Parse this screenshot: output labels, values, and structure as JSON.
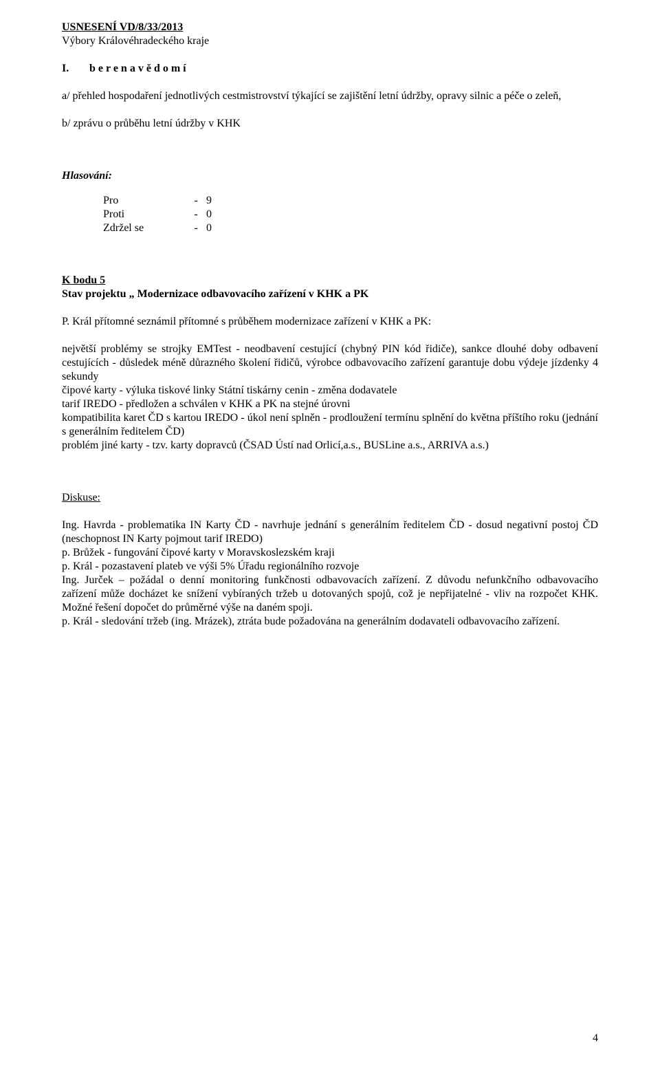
{
  "resolution": {
    "heading": "USNESENÍ VD/8/33/2013",
    "subheading": "Výbory Královéhradeckého kraje",
    "roman": "I.",
    "takes_note": "b e r e   n a   v ě d o m í",
    "line_a": "a/ přehled hospodaření jednotlivých cestmistrovství týkající se zajištění letní údržby, opravy silnic a péče o zeleň,",
    "line_b": "b/ zprávu o průběhu letní údržby v KHK"
  },
  "voting": {
    "title": "Hlasování:",
    "rows": [
      {
        "label": "Pro",
        "dash": "-",
        "value": "9"
      },
      {
        "label": "Proti",
        "dash": "-",
        "value": "0"
      },
      {
        "label": "Zdržel se",
        "dash": "-",
        "value": "0"
      }
    ]
  },
  "item5": {
    "heading": "K bodu 5",
    "title": "Stav projektu „ Modernizace odbavovacího zařízení v KHK a PK",
    "intro": "P. Král přítomné seznámil přítomné s průběhem modernizace zařízení v KHK a PK:",
    "p1": "největší problémy se strojky EMTest - neodbavení cestující (chybný PIN kód řidiče), sankce dlouhé doby odbavení cestujících - důsledek méně důrazného školení řidičů, výrobce odbavovacího zařízení garantuje dobu výdeje jízdenky 4 sekundy",
    "p2": "čipové karty - výluka tiskové linky Státní tiskárny cenin - změna dodavatele",
    "p3": "tarif IREDO - předložen a schválen v KHK a PK na stejné úrovni",
    "p4": "kompatibilita karet ČD s kartou IREDO - úkol není splněn - prodloužení termínu splnění do května příštího roku (jednání s generálním ředitelem ČD)",
    "p5": "problém jiné karty - tzv. karty dopravců (ČSAD Ústí nad Orlicí,a.s., BUSLine a.s., ARRIVA a.s.)"
  },
  "discussion": {
    "heading": "Diskuse:",
    "p1": "Ing. Havrda - problematika IN Karty ČD - navrhuje jednání s generálním ředitelem ČD  - dosud negativní postoj ČD (neschopnost IN Karty pojmout tarif IREDO)",
    "p2": "p. Brůžek - fungování čipové karty v Moravskoslezském kraji",
    "p3": "p. Král - pozastavení plateb ve výši 5% Úřadu regionálního rozvoje",
    "p4": "Ing. Jurček – požádal o denní monitoring funkčnosti odbavovacích zařízení. Z důvodu nefunkčního odbavovacího zařízení může docházet ke snížení vybíraných tržeb u dotovaných spojů, což je nepřijatelné - vliv na rozpočet KHK. Možné řešení dopočet do průměrné výše na daném spoji.",
    "p5": "p. Král - sledování tržeb (ing. Mrázek), ztráta bude požadována na generálním dodavateli odbavovacího zařízení."
  },
  "page_number": "4"
}
